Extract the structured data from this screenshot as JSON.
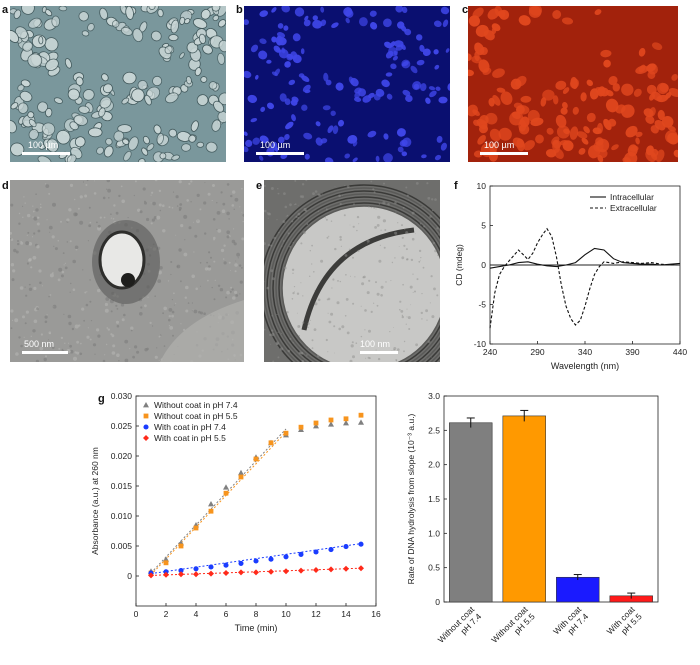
{
  "figure": {
    "panels": {
      "a": {
        "letter": "a",
        "scale_label": "100 µm"
      },
      "b": {
        "letter": "b",
        "scale_label": "100 µm"
      },
      "c": {
        "letter": "c",
        "scale_label": "100 µm"
      },
      "d": {
        "letter": "d",
        "scale_label": "500 nm"
      },
      "e": {
        "letter": "e",
        "scale_label": "100 nm"
      },
      "f": {
        "letter": "f"
      },
      "g": {
        "letter": "g"
      }
    },
    "colors": {
      "phase": "#7a979c",
      "dapi": "#0a0f70",
      "red": "#a2220c",
      "tem": "#9a9a98"
    }
  },
  "chart_data": [
    {
      "id": "f",
      "type": "line",
      "xlabel": "Wavelength (nm)",
      "ylabel": "CD (mdeg)",
      "xlim": [
        240,
        440
      ],
      "ylim": [
        -10,
        10
      ],
      "xticks": [
        240,
        290,
        340,
        390,
        440
      ],
      "yticks": [
        -10,
        -5,
        0,
        5,
        10
      ],
      "legend_position": "top-right",
      "series": [
        {
          "name": "Intracellular",
          "style": "solid",
          "x": [
            240,
            250,
            260,
            270,
            280,
            290,
            300,
            310,
            320,
            330,
            340,
            350,
            360,
            370,
            380,
            390,
            400,
            410,
            420,
            430,
            440
          ],
          "y": [
            -0.4,
            -0.2,
            0,
            0.3,
            0.4,
            0.1,
            -0.1,
            -0.2,
            0,
            0.3,
            1.3,
            2.1,
            1.9,
            0.8,
            0.3,
            0.2,
            0.1,
            0.1,
            0,
            0.1,
            0.2
          ]
        },
        {
          "name": "Extracellular",
          "style": "dashed",
          "x": [
            240,
            245,
            250,
            255,
            260,
            265,
            270,
            275,
            280,
            285,
            290,
            295,
            300,
            305,
            310,
            315,
            320,
            325,
            330,
            335,
            340,
            345,
            350,
            355,
            360,
            365,
            370,
            380,
            390,
            400,
            410,
            420,
            430,
            440
          ],
          "y": [
            -8,
            -3.5,
            -1.2,
            -0.2,
            0.5,
            1.2,
            1.9,
            1.3,
            0.7,
            1.5,
            2.8,
            3.8,
            4.6,
            3.6,
            1.0,
            -2.5,
            -5.2,
            -6.8,
            -7.6,
            -7.0,
            -5.2,
            -3.0,
            -1.2,
            -0.2,
            0.4,
            0.3,
            0.2,
            0.4,
            0.3,
            0.2,
            0.3,
            0.1,
            0,
            0
          ]
        }
      ]
    },
    {
      "id": "g-left",
      "type": "scatter",
      "xlabel": "Time (min)",
      "ylabel": "Absorbance (a.u.) at 260 nm",
      "xlim": [
        0,
        16
      ],
      "ylim": [
        -0.005,
        0.03
      ],
      "xticks": [
        0,
        2,
        4,
        6,
        8,
        10,
        12,
        14,
        16
      ],
      "yticks": [
        0,
        0.005,
        0.01,
        0.015,
        0.02,
        0.025,
        0.03
      ],
      "ytick_labels": [
        "0",
        "0.005",
        "0.010",
        "0.015",
        "0.020",
        "0.025",
        "0.030"
      ],
      "legend_position": "top-left",
      "series": [
        {
          "name": "Without coat in pH 7.4",
          "color": "#808080",
          "marker": "triangle",
          "x": [
            1,
            2,
            3,
            4,
            5,
            6,
            7,
            8,
            9,
            10,
            11,
            12,
            13,
            14,
            15
          ],
          "y": [
            0.0008,
            0.0028,
            0.0055,
            0.0085,
            0.012,
            0.0148,
            0.0172,
            0.0198,
            0.0222,
            0.0235,
            0.0244,
            0.025,
            0.0253,
            0.0255,
            0.0256
          ],
          "fit": [
            [
              1,
              0.0005
            ],
            [
              10,
              0.0245
            ]
          ]
        },
        {
          "name": "Without coat in pH 5.5",
          "color": "#f7941d",
          "marker": "square",
          "x": [
            1,
            2,
            3,
            4,
            5,
            6,
            7,
            8,
            9,
            10,
            11,
            12,
            13,
            14,
            15
          ],
          "y": [
            0.0005,
            0.0022,
            0.005,
            0.008,
            0.0108,
            0.0138,
            0.0165,
            0.0195,
            0.0222,
            0.0238,
            0.0248,
            0.0255,
            0.026,
            0.0262,
            0.0268
          ],
          "fit": [
            [
              1,
              0.0002
            ],
            [
              10,
              0.024
            ]
          ]
        },
        {
          "name": "With coat in pH 7.4",
          "color": "#1a3cff",
          "marker": "circle",
          "x": [
            1,
            2,
            3,
            4,
            5,
            6,
            7,
            8,
            9,
            10,
            11,
            12,
            13,
            14,
            15
          ],
          "y": [
            0.0005,
            0.0007,
            0.0009,
            0.0012,
            0.0015,
            0.0018,
            0.0021,
            0.0025,
            0.0028,
            0.0032,
            0.0036,
            0.004,
            0.0044,
            0.0049,
            0.0053
          ],
          "fit": [
            [
              1,
              0.0004
            ],
            [
              15,
              0.0054
            ]
          ]
        },
        {
          "name": "With coat in pH 5.5",
          "color": "#ff2a1a",
          "marker": "diamond",
          "x": [
            1,
            2,
            3,
            4,
            5,
            6,
            7,
            8,
            9,
            10,
            11,
            12,
            13,
            14,
            15
          ],
          "y": [
            0.0001,
            0.0002,
            0.0003,
            0.0003,
            0.0004,
            0.0005,
            0.0006,
            0.0006,
            0.0007,
            0.0008,
            0.0009,
            0.001,
            0.0011,
            0.0012,
            0.0013
          ],
          "fit": [
            [
              1,
              0.0001
            ],
            [
              15,
              0.0013
            ]
          ]
        }
      ]
    },
    {
      "id": "g-right",
      "type": "bar",
      "ylabel": "Rate of DNA hydrolysis from slope (10⁻³ a.u.)",
      "ylim": [
        0,
        3.0
      ],
      "yticks": [
        0,
        0.5,
        1.0,
        1.5,
        2.0,
        2.5,
        3.0
      ],
      "ytick_labels": [
        "0",
        "0.5",
        "1.0",
        "1.5",
        "2.0",
        "2.5",
        "3.0"
      ],
      "categories": [
        [
          "Without coat",
          "pH 7.4"
        ],
        [
          "Without coat",
          "pH 5.5"
        ],
        [
          "With coat",
          "pH 7.4"
        ],
        [
          "With coat",
          "pH 5.5"
        ]
      ],
      "values": [
        2.61,
        2.71,
        0.36,
        0.09
      ],
      "errors": [
        0.07,
        0.08,
        0.04,
        0.04
      ],
      "colors": [
        "#7f7f7f",
        "#ff9900",
        "#1a1aff",
        "#ff1a1a"
      ]
    }
  ]
}
